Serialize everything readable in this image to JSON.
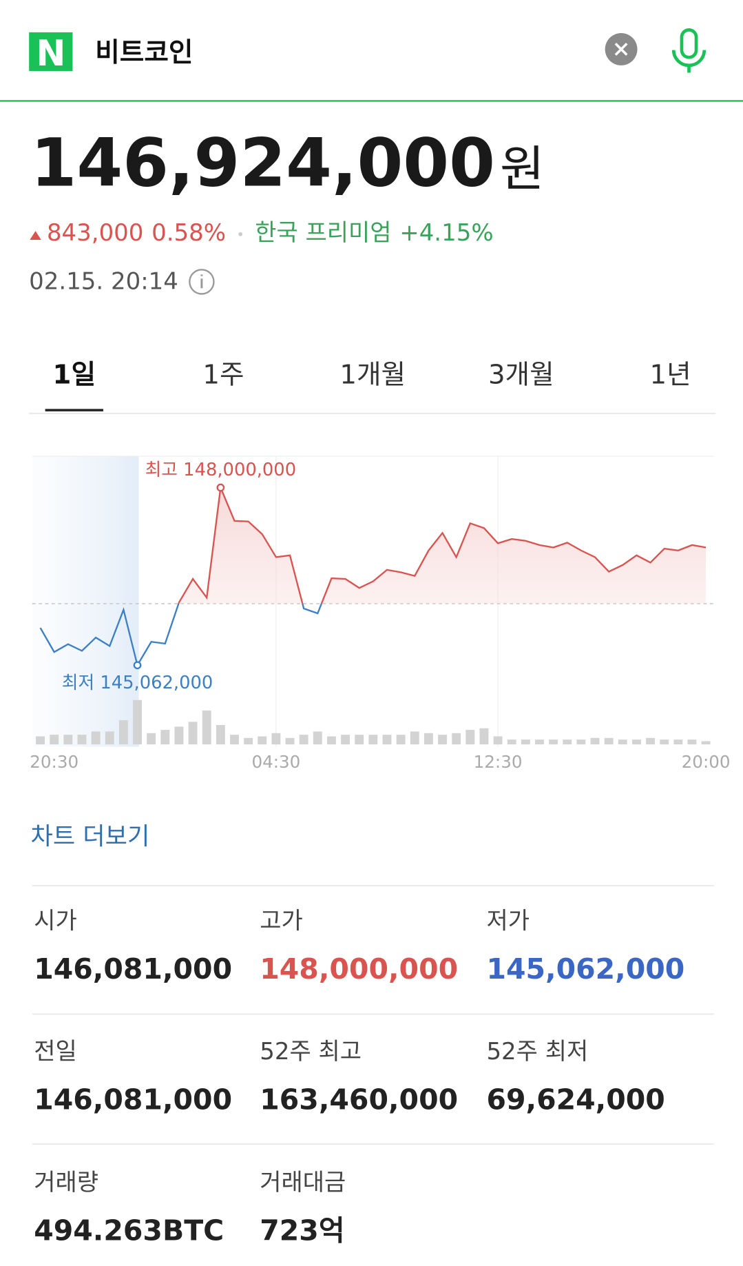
{
  "header": {
    "logo": "N",
    "query": "비트코인"
  },
  "price": {
    "value": "146,924,000",
    "unit": "원",
    "change": "843,000",
    "change_pct": "0.58%",
    "premium_label": "한국 프리미엄",
    "premium": "+4.15%",
    "time": "02.15. 20:14"
  },
  "tabs": [
    "1일",
    "1주",
    "1개월",
    "3개월",
    "1년"
  ],
  "chart_data": {
    "type": "line",
    "categories": [
      null,
      "20:30",
      null,
      null,
      null,
      null,
      null,
      null,
      null,
      null,
      null,
      null,
      null,
      null,
      null,
      null,
      null,
      "04:30",
      null,
      null,
      null,
      null,
      null,
      null,
      null,
      null,
      null,
      null,
      null,
      null,
      null,
      null,
      null,
      "12:30",
      null,
      null,
      null,
      null,
      null,
      null,
      null,
      null,
      null,
      null,
      null,
      null,
      null,
      null,
      "20:00"
    ],
    "values": [
      145680000,
      145280000,
      145410000,
      145300000,
      145520000,
      145380000,
      145980000,
      145062000,
      145450000,
      145420000,
      146100000,
      146490000,
      146180000,
      148000000,
      147450000,
      147440000,
      147230000,
      146850000,
      146880000,
      146000000,
      145920000,
      146500000,
      146490000,
      146340000,
      146450000,
      146640000,
      146600000,
      146540000,
      146960000,
      147250000,
      146850000,
      147410000,
      147330000,
      147080000,
      147150000,
      147120000,
      147050000,
      147010000,
      147090000,
      146960000,
      146850000,
      146610000,
      146720000,
      146880000,
      146760000,
      146990000,
      146960000,
      147050000,
      147010000
    ],
    "volume": [
      10,
      12,
      12,
      12,
      16,
      16,
      30,
      55,
      14,
      18,
      22,
      28,
      42,
      24,
      12,
      8,
      10,
      14,
      8,
      12,
      16,
      10,
      12,
      12,
      12,
      12,
      12,
      16,
      14,
      12,
      14,
      18,
      20,
      10,
      6,
      6,
      6,
      6,
      6,
      6,
      8,
      8,
      6,
      6,
      8,
      6,
      6,
      6,
      4
    ],
    "reference_line": 146081000,
    "ylim": [
      144580000,
      148520000
    ],
    "max_label": "최고 148,000,000",
    "min_label": "최저 145,062,000",
    "up_color": "#d9534f",
    "down_color": "#3b7fc4",
    "volume_color": "#d3d3d3"
  },
  "more_link": "차트 더보기",
  "stats": [
    {
      "label": "시가",
      "value": "146,081,000",
      "color": "#222222"
    },
    {
      "label": "고가",
      "value": "148,000,000",
      "color": "#d9534f"
    },
    {
      "label": "저가",
      "value": "145,062,000",
      "color": "#3a66c4"
    },
    {
      "label": "전일",
      "value": "146,081,000",
      "color": "#222222"
    },
    {
      "label": "52주 최고",
      "value": "163,460,000",
      "color": "#222222"
    },
    {
      "label": "52주 최저",
      "value": "69,624,000",
      "color": "#222222"
    },
    {
      "label": "거래량",
      "value": "494.263BTC",
      "color": "#222222"
    },
    {
      "label": "거래대금",
      "value": "723억",
      "color": "#222222"
    }
  ]
}
